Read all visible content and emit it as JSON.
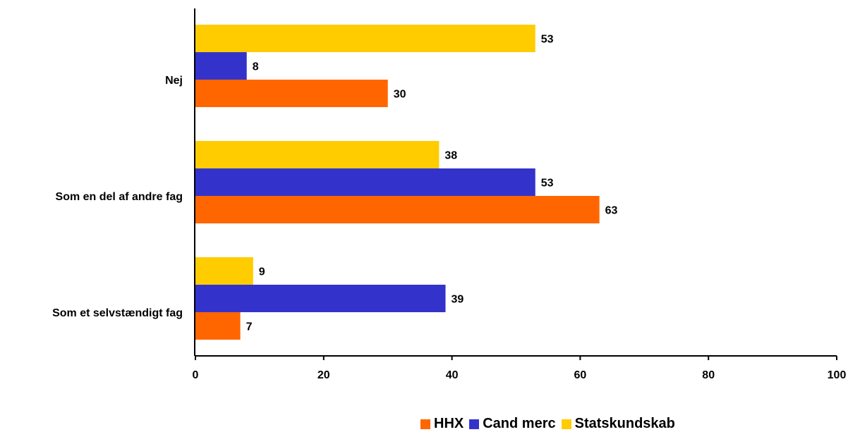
{
  "chart_data": {
    "type": "bar",
    "orientation": "horizontal",
    "categories": [
      "Nej",
      "Som en del af andre fag",
      "Som et selvstændigt fag"
    ],
    "series": [
      {
        "name": "Statskundskab",
        "color": "#FFCC00",
        "values": [
          53,
          38,
          9
        ]
      },
      {
        "name": "Cand merc",
        "color": "#3333CC",
        "values": [
          8,
          53,
          39
        ]
      },
      {
        "name": "HHX",
        "color": "#FF6600",
        "values": [
          30,
          63,
          7
        ]
      }
    ],
    "xlim": [
      0,
      100
    ],
    "xticks": [
      0,
      20,
      40,
      60,
      80,
      100
    ],
    "xlabel": "",
    "ylabel": "",
    "title": "",
    "grid": false,
    "legend": {
      "placement": "bottom",
      "order": [
        "HHX",
        "Cand merc",
        "Statskundskab"
      ]
    }
  }
}
